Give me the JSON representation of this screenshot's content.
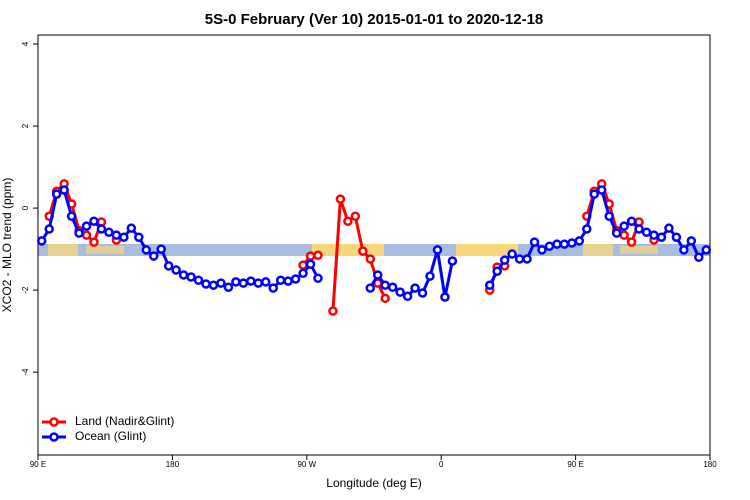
{
  "chart_data": {
    "type": "line",
    "title": "5S-0 February (Ver 10)   2015-01-01 to 2020-12-18",
    "xlabel": "Longitude (deg E)",
    "ylabel": "XCO2 - MLO trend (ppm)",
    "xlim": [
      90,
      540
    ],
    "ylim": [
      -6.02,
      4.22
    ],
    "xticks": [
      {
        "value": 90,
        "label": "90 E"
      },
      180,
      {
        "value": 270,
        "label": "90 W"
      },
      {
        "value": 360,
        "label": "0"
      },
      {
        "value": 450,
        "label": "90 E"
      },
      {
        "value": 540,
        "label": "180"
      }
    ],
    "yticks": [
      4,
      2,
      0,
      -2,
      -4
    ],
    "legend": "bottomleft",
    "x": [
      92.5,
      97.5,
      102.5,
      107.5,
      112.5,
      117.5,
      122.5,
      127.5,
      132.5,
      137.5,
      142.5,
      147.5,
      152.5,
      157.5,
      162.5,
      167.5,
      172.5,
      177.5,
      182.5,
      187.5,
      192.5,
      197.5,
      202.5,
      207.5,
      212.5,
      217.5,
      222.5,
      227.5,
      232.5,
      237.5,
      242.5,
      247.5,
      252.5,
      257.5,
      262.5,
      267.5,
      272.5,
      277.5,
      282.5,
      287.5,
      292.5,
      297.5,
      302.5,
      307.5,
      312.5,
      317.5,
      322.5,
      327.5,
      332.5,
      337.5,
      342.5,
      347.5,
      352.5,
      357.5,
      362.5,
      367.5,
      372.5,
      377.5,
      382.5,
      387.5,
      392.5,
      397.5,
      402.5,
      407.5,
      412.5,
      417.5,
      422.5,
      427.5,
      432.5,
      437.5,
      442.5,
      447.5,
      452.5,
      457.5,
      462.5,
      467.5,
      472.5,
      477.5,
      482.5,
      487.5,
      492.5,
      497.5,
      502.5,
      507.5,
      512.5,
      517.5,
      522.5,
      527.5,
      532.5,
      537.5
    ],
    "series": [
      {
        "name": "Land (Nadir&Glint)",
        "color": "#ff0000",
        "values": [
          null,
          -0.2,
          0.41,
          0.59,
          0.1,
          -0.55,
          -0.66,
          -0.83,
          -0.34,
          null,
          -0.78,
          null,
          null,
          null,
          null,
          null,
          null,
          null,
          null,
          null,
          null,
          null,
          null,
          null,
          null,
          null,
          null,
          null,
          null,
          null,
          null,
          null,
          null,
          null,
          null,
          -1.39,
          -1.17,
          -1.15,
          null,
          -2.51,
          0.22,
          -0.32,
          -0.2,
          -1.05,
          -1.24,
          -1.83,
          -2.2,
          null,
          null,
          null,
          null,
          null,
          null,
          null,
          null,
          null,
          null,
          null,
          null,
          null,
          -2.0,
          -1.44,
          -1.41,
          null,
          null,
          null,
          null,
          null,
          null,
          null,
          null,
          null,
          null,
          -0.2,
          0.41,
          0.59,
          0.1,
          -0.55,
          -0.66,
          -0.83,
          -0.34,
          null,
          -0.78,
          null,
          null,
          null,
          null,
          null,
          null,
          null
        ]
      },
      {
        "name": "Ocean (Glint)",
        "color": "#0000ff",
        "values": [
          -0.8,
          -0.51,
          0.34,
          0.44,
          -0.2,
          -0.61,
          -0.44,
          -0.32,
          -0.51,
          -0.59,
          -0.66,
          -0.71,
          -0.49,
          -0.71,
          -1.02,
          -1.17,
          -1.0,
          -1.41,
          -1.51,
          -1.63,
          -1.68,
          -1.76,
          -1.85,
          -1.88,
          -1.83,
          -1.93,
          -1.8,
          -1.83,
          -1.78,
          -1.83,
          -1.8,
          -1.95,
          -1.76,
          -1.78,
          -1.73,
          -1.59,
          -1.37,
          -1.71,
          null,
          null,
          null,
          null,
          null,
          null,
          -1.95,
          -1.63,
          -1.88,
          -1.93,
          -2.05,
          -2.15,
          -1.95,
          -2.07,
          -1.66,
          -1.02,
          -2.17,
          -1.29,
          null,
          null,
          null,
          null,
          -1.88,
          -1.54,
          -1.27,
          -1.12,
          -1.24,
          -1.24,
          -0.83,
          -1.02,
          -0.93,
          -0.88,
          -0.88,
          -0.85,
          -0.8,
          -0.51,
          0.34,
          0.44,
          -0.2,
          -0.61,
          -0.44,
          -0.32,
          -0.51,
          -0.59,
          -0.66,
          -0.71,
          -0.49,
          -0.71,
          -1.02,
          -0.8,
          -1.2,
          -1.02
        ]
      }
    ]
  }
}
